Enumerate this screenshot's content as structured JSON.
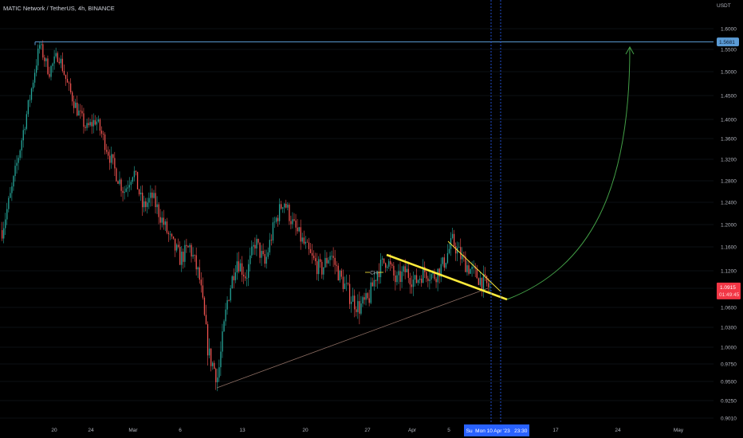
{
  "header": {
    "title": "MATIC Network / TetherUS, 4h, BINANCE",
    "currency": "USDT"
  },
  "colors": {
    "background": "#000000",
    "up": "#26a69a",
    "down": "#ef5350",
    "resistance": "#5b9bd5",
    "wedge": "#ffeb3b",
    "arrow": "#43a047",
    "support": "#8d6e63",
    "crosshair": "#2962ff",
    "price_badge": "#f23645"
  },
  "chart_data": {
    "type": "candlestick",
    "symbol": "MATICUSDT",
    "interval": "4h",
    "exchange": "BINANCE",
    "y_ticks": [
      "1.6000",
      "1.5500",
      "1.5000",
      "1.4500",
      "1.4000",
      "1.3600",
      "1.3200",
      "1.2800",
      "1.2400",
      "1.2000",
      "1.1600",
      "1.1200",
      "1.0900",
      "1.0600",
      "1.0300",
      "1.0000",
      "0.9750",
      "0.9500",
      "0.9250",
      "0.9010"
    ],
    "x_ticks": [
      "20",
      "24",
      "Mar",
      "6",
      "13",
      "20",
      "27",
      "Apr",
      "5",
      "17",
      "24",
      "May"
    ],
    "cursor_date": "Su  Mon 10 Apr '23   23:30",
    "resistance": {
      "label": "1.5681",
      "value": 1.5681
    },
    "last_price": {
      "label": "1.0915",
      "countdown": "01:49:45",
      "value": 1.0915
    },
    "annotation": "CH",
    "path": [
      [
        0,
        1.19
      ],
      [
        2,
        1.26
      ],
      [
        4,
        1.35
      ],
      [
        6,
        1.45
      ],
      [
        8,
        1.56
      ],
      [
        10,
        1.5
      ],
      [
        12,
        1.54
      ],
      [
        14,
        1.47
      ],
      [
        16,
        1.42
      ],
      [
        18,
        1.38
      ],
      [
        20,
        1.4
      ],
      [
        22,
        1.35
      ],
      [
        24,
        1.3
      ],
      [
        26,
        1.26
      ],
      [
        28,
        1.3
      ],
      [
        30,
        1.23
      ],
      [
        32,
        1.25
      ],
      [
        34,
        1.21
      ],
      [
        36,
        1.17
      ],
      [
        38,
        1.14
      ],
      [
        40,
        1.16
      ],
      [
        42,
        1.11
      ],
      [
        44,
        0.99
      ],
      [
        46,
        0.955
      ],
      [
        48,
        1.07
      ],
      [
        50,
        1.14
      ],
      [
        52,
        1.11
      ],
      [
        54,
        1.17
      ],
      [
        56,
        1.13
      ],
      [
        58,
        1.2
      ],
      [
        60,
        1.245
      ],
      [
        62,
        1.2
      ],
      [
        64,
        1.17
      ],
      [
        66,
        1.14
      ],
      [
        68,
        1.12
      ],
      [
        70,
        1.15
      ],
      [
        72,
        1.11
      ],
      [
        74,
        1.08
      ],
      [
        76,
        1.06
      ],
      [
        78,
        1.07
      ],
      [
        80,
        1.12
      ],
      [
        82,
        1.14
      ],
      [
        84,
        1.1
      ],
      [
        86,
        1.12
      ],
      [
        88,
        1.1
      ],
      [
        90,
        1.12
      ],
      [
        92,
        1.11
      ],
      [
        94,
        1.13
      ],
      [
        96,
        1.17
      ],
      [
        98,
        1.14
      ],
      [
        100,
        1.12
      ],
      [
        102,
        1.105
      ],
      [
        104,
        1.09
      ]
    ]
  }
}
